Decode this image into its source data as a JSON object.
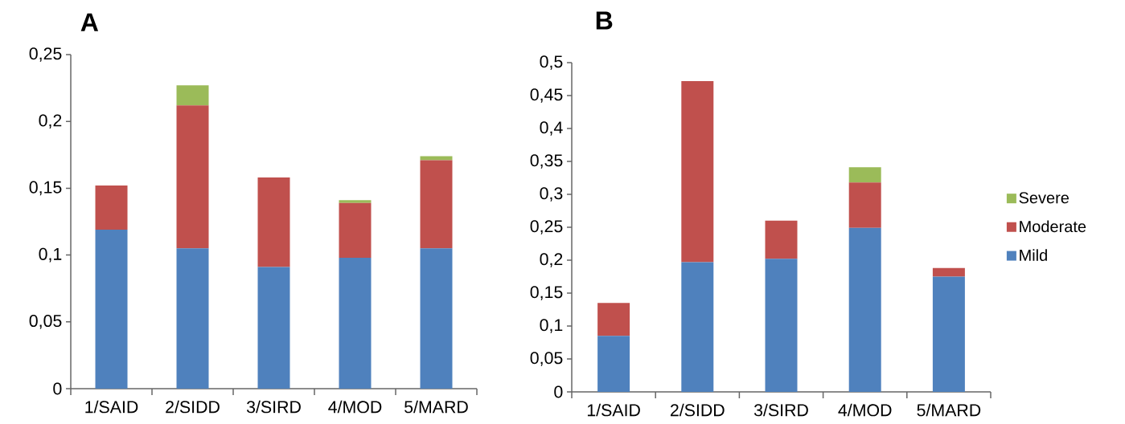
{
  "chart_data": [
    {
      "type": "bar",
      "title": "A",
      "stacked": true,
      "categories": [
        "1/SAID",
        "2/SIDD",
        "3/SIRD",
        "4/MOD",
        "5/MARD"
      ],
      "series": [
        {
          "color": "#4f81bd",
          "values": [
            0.119,
            0.105,
            0.091,
            0.098,
            0.105
          ]
        },
        {
          "color": "#c0504d",
          "values": [
            0.033,
            0.107,
            0.067,
            0.041,
            0.066
          ]
        },
        {
          "color": "#9bbb59",
          "values": [
            0,
            0.015,
            0,
            0.002,
            0.003
          ]
        }
      ],
      "ylim": [
        0,
        0.25
      ],
      "yticks": [
        0,
        {
          "value": 0.05,
          "label": "0,05"
        },
        {
          "value": 0.1,
          "label": "0,1"
        },
        {
          "value": 0.15,
          "label": "0,15"
        },
        {
          "value": 0.2,
          "label": "0,2"
        },
        {
          "value": 0.25,
          "label": "0,25"
        }
      ],
      "grid": false,
      "legend": false
    },
    {
      "type": "bar",
      "title": "B",
      "stacked": true,
      "categories": [
        "1/SAID",
        "2/SIDD",
        "3/SIRD",
        "4/MOD",
        "5/MARD"
      ],
      "series": [
        {
          "name": "Mild",
          "color": "#4f81bd",
          "values": [
            0.085,
            0.197,
            0.202,
            0.249,
            0.175
          ]
        },
        {
          "name": "Moderate",
          "color": "#c0504d",
          "values": [
            0.05,
            0.275,
            0.058,
            0.069,
            0.013
          ]
        },
        {
          "name": "Severe",
          "color": "#9bbb59",
          "values": [
            0,
            0,
            0,
            0.023,
            0
          ]
        }
      ],
      "ylim": [
        0,
        0.5
      ],
      "yticks": [
        0,
        {
          "value": 0.05,
          "label": "0,05"
        },
        {
          "value": 0.1,
          "label": "0,1"
        },
        {
          "value": 0.15,
          "label": "0,15"
        },
        {
          "value": 0.2,
          "label": "0,2"
        },
        {
          "value": 0.25,
          "label": "0,25"
        },
        {
          "value": 0.3,
          "label": "0,3"
        },
        {
          "value": 0.35,
          "label": "0,35"
        },
        {
          "value": 0.4,
          "label": "0,4"
        },
        {
          "value": 0.45,
          "label": "0,45"
        },
        {
          "value": 0.5,
          "label": "0,5"
        }
      ],
      "grid": false,
      "legend": "right"
    }
  ]
}
